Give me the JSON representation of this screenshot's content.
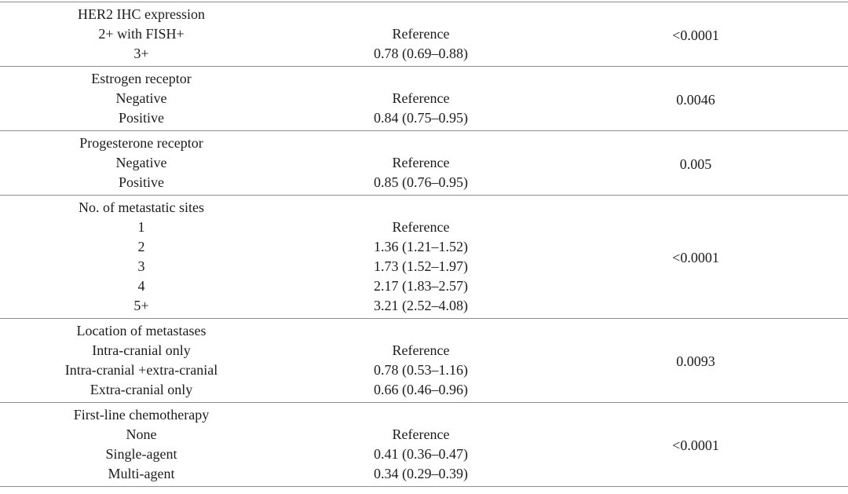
{
  "table": {
    "sections": [
      {
        "variable": "HER2 IHC expression",
        "rows": [
          {
            "label": "2+ with FISH+",
            "value": "Reference"
          },
          {
            "label": "3+",
            "value": "0.78 (0.69–0.88)"
          }
        ],
        "p_value": "<0.0001"
      },
      {
        "variable": "Estrogen receptor",
        "rows": [
          {
            "label": "Negative",
            "value": "Reference"
          },
          {
            "label": "Positive",
            "value": "0.84 (0.75–0.95)"
          }
        ],
        "p_value": "0.0046"
      },
      {
        "variable": "Progesterone receptor",
        "rows": [
          {
            "label": "Negative",
            "value": "Reference"
          },
          {
            "label": "Positive",
            "value": "0.85 (0.76–0.95)"
          }
        ],
        "p_value": "0.005"
      },
      {
        "variable": "No. of metastatic sites",
        "rows": [
          {
            "label": "1",
            "value": "Reference"
          },
          {
            "label": "2",
            "value": "1.36 (1.21–1.52)"
          },
          {
            "label": "3",
            "value": "1.73 (1.52–1.97)"
          },
          {
            "label": "4",
            "value": "2.17 (1.83–2.57)"
          },
          {
            "label": "5+",
            "value": "3.21 (2.52–4.08)"
          }
        ],
        "p_value": "<0.0001"
      },
      {
        "variable": "Location of metastases",
        "rows": [
          {
            "label": "Intra-cranial only",
            "value": "Reference"
          },
          {
            "label": "Intra-cranial +extra-cranial",
            "value": "0.78 (0.53–1.16)"
          },
          {
            "label": "Extra-cranial only",
            "value": "0.66 (0.46–0.96)"
          }
        ],
        "p_value": "0.0093"
      },
      {
        "variable": "First-line chemotherapy",
        "rows": [
          {
            "label": "None",
            "value": "Reference"
          },
          {
            "label": "Single-agent",
            "value": "0.41 (0.36–0.47)"
          },
          {
            "label": "Multi-agent",
            "value": "0.34 (0.29–0.39)"
          }
        ],
        "p_value": "<0.0001"
      }
    ]
  }
}
